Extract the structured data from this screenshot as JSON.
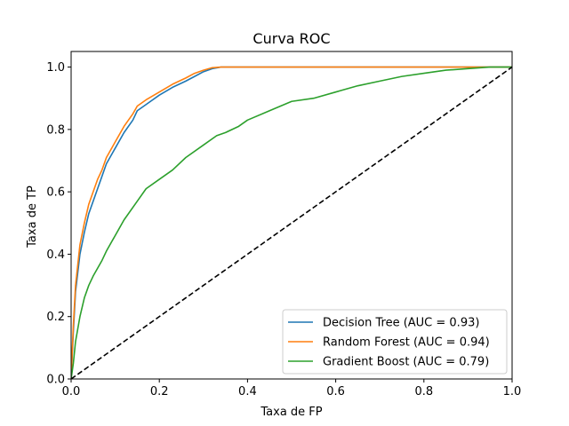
{
  "chart_data": {
    "type": "line",
    "title": "Curva ROC",
    "xlabel": "Taxa de FP",
    "ylabel": "Taxa de TP",
    "xlim": [
      0,
      1
    ],
    "ylim": [
      0,
      1.05
    ],
    "xticks": [
      "0.0",
      "0.2",
      "0.4",
      "0.6",
      "0.8",
      "1.0"
    ],
    "yticks": [
      "0.0",
      "0.2",
      "0.4",
      "0.6",
      "0.8",
      "1.0"
    ],
    "grid": false,
    "legend_position": "lower-right",
    "series": [
      {
        "name": "Decision Tree (AUC = 0.93)",
        "color": "#1f77b4",
        "x": [
          0,
          0.005,
          0.01,
          0.02,
          0.03,
          0.04,
          0.05,
          0.06,
          0.07,
          0.08,
          0.1,
          0.12,
          0.14,
          0.15,
          0.17,
          0.2,
          0.23,
          0.26,
          0.28,
          0.3,
          0.32,
          0.34,
          0.5,
          0.8,
          1.0
        ],
        "y": [
          0,
          0.15,
          0.28,
          0.4,
          0.47,
          0.53,
          0.57,
          0.61,
          0.65,
          0.69,
          0.74,
          0.79,
          0.83,
          0.86,
          0.88,
          0.91,
          0.935,
          0.955,
          0.97,
          0.985,
          0.995,
          1.0,
          1.0,
          1.0,
          1.0
        ]
      },
      {
        "name": "Random Forest (AUC = 0.94)",
        "color": "#ff7f0e",
        "x": [
          0,
          0.005,
          0.01,
          0.02,
          0.03,
          0.04,
          0.05,
          0.06,
          0.07,
          0.08,
          0.1,
          0.12,
          0.14,
          0.15,
          0.17,
          0.2,
          0.23,
          0.26,
          0.28,
          0.3,
          0.32,
          0.34,
          0.5,
          0.8,
          1.0
        ],
        "y": [
          0,
          0.17,
          0.3,
          0.43,
          0.5,
          0.56,
          0.6,
          0.64,
          0.67,
          0.71,
          0.76,
          0.81,
          0.85,
          0.875,
          0.895,
          0.92,
          0.945,
          0.965,
          0.98,
          0.99,
          0.998,
          1.0,
          1.0,
          1.0,
          1.0
        ]
      },
      {
        "name": "Gradient Boost (AUC = 0.79)",
        "color": "#2ca02c",
        "x": [
          0,
          0.005,
          0.01,
          0.02,
          0.03,
          0.04,
          0.05,
          0.07,
          0.08,
          0.1,
          0.12,
          0.15,
          0.17,
          0.2,
          0.23,
          0.26,
          0.3,
          0.33,
          0.35,
          0.38,
          0.4,
          0.45,
          0.5,
          0.55,
          0.6,
          0.65,
          0.7,
          0.75,
          0.8,
          0.85,
          0.9,
          0.95,
          1.0
        ],
        "y": [
          0,
          0.05,
          0.12,
          0.2,
          0.26,
          0.3,
          0.33,
          0.38,
          0.41,
          0.46,
          0.51,
          0.57,
          0.61,
          0.64,
          0.67,
          0.71,
          0.75,
          0.78,
          0.79,
          0.81,
          0.83,
          0.86,
          0.89,
          0.9,
          0.92,
          0.94,
          0.955,
          0.97,
          0.98,
          0.99,
          0.995,
          1.0,
          1.0
        ]
      },
      {
        "name": "",
        "color": "#000000",
        "dashed": true,
        "x": [
          0,
          1
        ],
        "y": [
          0,
          1
        ]
      }
    ]
  }
}
